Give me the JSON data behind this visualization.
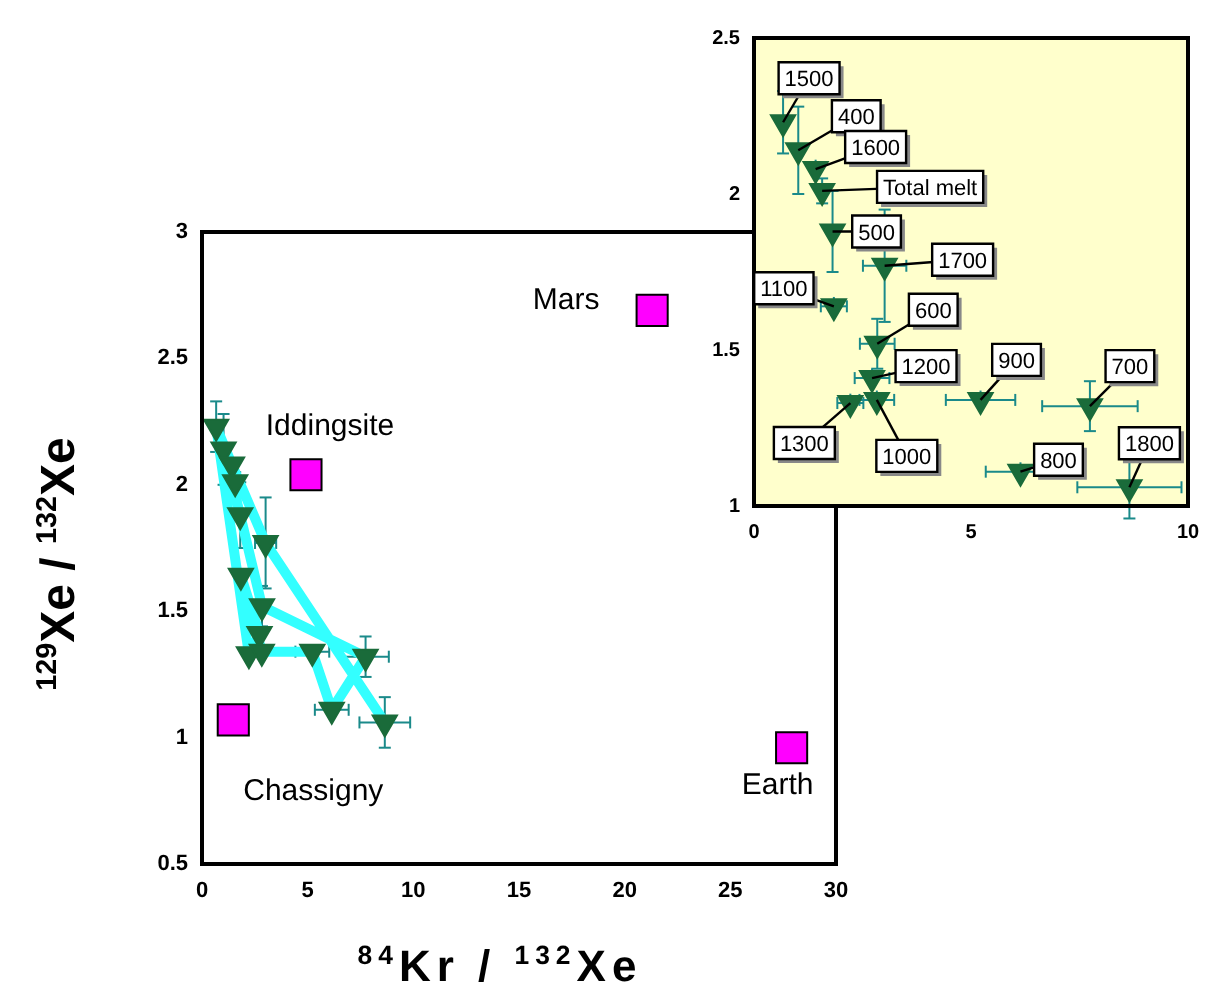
{
  "chart_data": [
    {
      "type": "scatter",
      "xlabel": "$^{84}$Kr / $^{132}$Xe",
      "ylabel": "$^{129}$Xe / $^{132}$Xe",
      "xlim": [
        0,
        30
      ],
      "ylim": [
        0.5,
        3
      ],
      "xticks": [
        0,
        5,
        10,
        15,
        20,
        25,
        30
      ],
      "yticks": [
        0.5,
        1,
        1.5,
        2,
        2.5,
        3
      ],
      "grid": false,
      "legend": false,
      "marker": "triangle",
      "series": [
        {
          "type": "line",
          "color": "#33ffff",
          "marker": "none",
          "x": [
            1.02,
            1.81,
            2.84,
            7.74,
            6.14,
            5.22,
            2.83,
            1.84,
            2.72,
            2.22,
            0.67,
            1.42,
            3.01,
            8.65
          ],
          "values": [
            2.14,
            1.88,
            1.52,
            1.32,
            1.11,
            1.34,
            1.34,
            1.64,
            1.41,
            1.33,
            2.23,
            2.08,
            1.77,
            1.06
          ]
        },
        {
          "type": "scatter",
          "color": "#1a6b3a",
          "x": [
            0.67,
            1.02,
            1.42,
            1.57,
            1.81,
            3.01,
            1.84,
            2.84,
            2.72,
            2.22,
            2.83,
            5.22,
            7.74,
            6.14,
            8.65
          ],
          "values": [
            2.23,
            2.14,
            2.08,
            2.01,
            1.88,
            1.77,
            1.64,
            1.52,
            1.41,
            1.33,
            1.34,
            1.34,
            1.32,
            1.11,
            1.06
          ],
          "errors": [
            0.1,
            0.14,
            0.03,
            0.04,
            0.13,
            0.18,
            0.03,
            0.08,
            0.03,
            0.03,
            0.03,
            0.03,
            0.08,
            0.03,
            0.1
          ],
          "xerrors": [
            null,
            null,
            null,
            null,
            null,
            0.5,
            0.3,
            0.4,
            0.4,
            null,
            0.4,
            0.8,
            1.1,
            0.8,
            1.2
          ]
        },
        {
          "type": "scatter",
          "color": "#ff00ff",
          "marker": "square",
          "x": [
            21.3,
            4.92,
            1.48,
            27.9
          ],
          "values": [
            2.69,
            2.04,
            1.07,
            0.96
          ]
        }
      ],
      "annotations": [
        {
          "text": "Mars",
          "x": 21.3,
          "y": 2.69
        },
        {
          "text": "Iddingsite",
          "x": 4.92,
          "y": 2.04
        },
        {
          "text": "Chassigny",
          "x": 1.48,
          "y": 1.07
        },
        {
          "text": "Earth",
          "x": 27.9,
          "y": 0.96
        }
      ]
    },
    {
      "type": "scatter",
      "xlim": [
        0,
        10
      ],
      "ylim": [
        1,
        2.5
      ],
      "xticks": [
        0,
        5,
        10
      ],
      "yticks": [
        1,
        1.5,
        2,
        2.5
      ],
      "grid": false,
      "legend": false,
      "marker": "triangle",
      "series": [
        {
          "type": "scatter",
          "color": "#1a6b3a",
          "x": [
            0.67,
            1.02,
            1.42,
            1.57,
            1.81,
            3.01,
            1.84,
            2.84,
            2.72,
            2.22,
            2.83,
            5.22,
            7.74,
            6.14,
            8.65
          ],
          "values": [
            2.23,
            2.14,
            2.08,
            2.01,
            1.88,
            1.77,
            1.64,
            1.52,
            1.41,
            1.33,
            1.34,
            1.34,
            1.32,
            1.11,
            1.06
          ],
          "errors": [
            0.1,
            0.14,
            0.03,
            0.04,
            0.13,
            0.18,
            0.03,
            0.08,
            0.03,
            0.03,
            0.03,
            0.03,
            0.08,
            0.03,
            0.1
          ],
          "xerrors": [
            null,
            0.15,
            null,
            null,
            null,
            0.5,
            0.3,
            0.4,
            0.4,
            0.3,
            0.4,
            0.8,
            1.1,
            0.8,
            1.2
          ]
        }
      ],
      "annotations": [
        {
          "text": "1500",
          "x": 0.67,
          "y": 2.23
        },
        {
          "text": "400",
          "x": 1.02,
          "y": 2.14
        },
        {
          "text": "1600",
          "x": 1.42,
          "y": 2.08
        },
        {
          "text": "Total melt",
          "x": 1.57,
          "y": 2.01
        },
        {
          "text": "500",
          "x": 1.81,
          "y": 1.88
        },
        {
          "text": "1700",
          "x": 3.01,
          "y": 1.77
        },
        {
          "text": "1100",
          "x": 1.84,
          "y": 1.64
        },
        {
          "text": "600",
          "x": 2.84,
          "y": 1.52
        },
        {
          "text": "1200",
          "x": 2.72,
          "y": 1.41
        },
        {
          "text": "1300",
          "x": 2.22,
          "y": 1.33
        },
        {
          "text": "1000",
          "x": 2.83,
          "y": 1.34
        },
        {
          "text": "900",
          "x": 5.22,
          "y": 1.34
        },
        {
          "text": "700",
          "x": 7.74,
          "y": 1.32
        },
        {
          "text": "800",
          "x": 6.14,
          "y": 1.11
        },
        {
          "text": "1800",
          "x": 8.65,
          "y": 1.06
        }
      ]
    }
  ]
}
